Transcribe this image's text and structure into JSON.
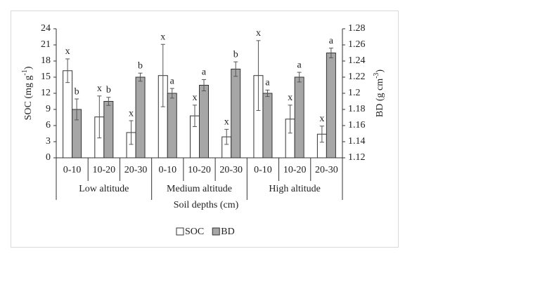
{
  "chart_data": {
    "type": "bar",
    "ylabel": [
      "SOC (mg g",
      "-1",
      ")"
    ],
    "y2label": [
      "BD (g cm",
      "-3",
      ")"
    ],
    "xlabel": "Soil depths (cm)",
    "categories": [
      "0-10",
      "10-20",
      "20-30",
      "0-10",
      "10-20",
      "20-30",
      "0-10",
      "10-20",
      "20-30"
    ],
    "groups": [
      "Low altitude",
      "Medium altitude",
      "High altitude"
    ],
    "ylim": [
      0,
      24
    ],
    "yticks": [
      0,
      3,
      6,
      9,
      12,
      15,
      18,
      21,
      24
    ],
    "y2lim": [
      1.12,
      1.28
    ],
    "y2ticks": [
      1.12,
      1.14,
      1.16,
      1.18,
      1.2,
      1.22,
      1.24,
      1.26,
      1.28
    ],
    "series": [
      {
        "name": "SOC",
        "color": "#ffffff",
        "values": [
          16.2,
          7.6,
          4.7,
          15.3,
          7.8,
          3.9,
          15.3,
          7.2,
          4.4
        ],
        "errors": [
          2.2,
          3.9,
          2.2,
          5.8,
          2.0,
          1.4,
          6.5,
          2.6,
          1.5
        ],
        "annotations": [
          "x",
          "x",
          "x",
          "x",
          "x",
          "x",
          "x",
          "x",
          "x"
        ]
      },
      {
        "name": "BD",
        "color": "#a6a6a6",
        "axis": "y2",
        "values": [
          1.18,
          1.19,
          1.22,
          1.2,
          1.21,
          1.23,
          1.2,
          1.22,
          1.25
        ],
        "errors": [
          0.013,
          0.005,
          0.005,
          0.006,
          0.007,
          0.009,
          0.004,
          0.006,
          0.006
        ],
        "annotations": [
          "b",
          "b",
          "b",
          "a",
          "a",
          "b",
          "a",
          "a",
          "a"
        ]
      }
    ]
  }
}
